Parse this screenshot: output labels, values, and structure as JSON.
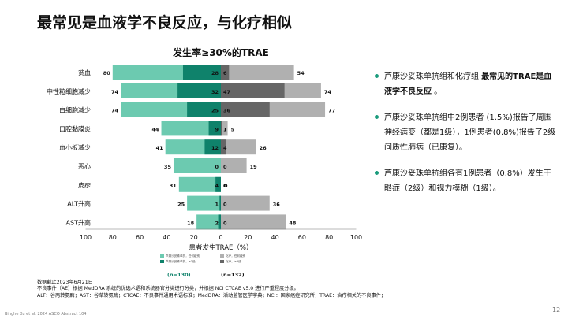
{
  "title": "最常见是血液学不良反应，与化疗相似",
  "chart_data": {
    "type": "bar",
    "layout": "butterfly-stacked",
    "title": "发生率≥30%的TRAE",
    "xlabel": "患者发生TRAE（%）",
    "xlim": [
      -100,
      100
    ],
    "xticks": [
      "100",
      "80",
      "60",
      "40",
      "20",
      "0",
      "20",
      "40",
      "60",
      "80",
      "100"
    ],
    "categories": [
      "贫血",
      "中性粒细胞减少",
      "白细胞减少",
      "口腔黏膜炎",
      "血小板减少",
      "恶心",
      "皮疹",
      "ALT升高",
      "AST升高"
    ],
    "left_series": [
      {
        "name": "芦康沙妥珠单抗，任何级别",
        "values": [
          80,
          74,
          74,
          44,
          41,
          35,
          31,
          25,
          18
        ],
        "color": "#6ccab0"
      },
      {
        "name": "芦康沙妥珠单抗，≥3级",
        "values": [
          28,
          32,
          25,
          9,
          12,
          0,
          4,
          1,
          2
        ],
        "color": "#0f826b"
      }
    ],
    "right_series": [
      {
        "name": "化疗，任何级别",
        "values": [
          54,
          74,
          77,
          5,
          26,
          19,
          0,
          36,
          48
        ],
        "color": "#b0b0b0"
      },
      {
        "name": "化疗，≥3级",
        "values": [
          6,
          47,
          36,
          1,
          4,
          0,
          0,
          0,
          0
        ],
        "color": "#666666"
      }
    ],
    "left_n": "(n=130)",
    "right_n": "(n=132)"
  },
  "bullets": [
    {
      "pre": "芦康沙妥珠单抗组和化疗组 ",
      "bold": "最常见的TRAE是血液学不良反应",
      "post": " 。"
    },
    {
      "pre": "芦康沙妥珠单抗组中2例患者 (1.5%)报告了周围神经病变（都是1级），1例患者(0.8%)报告了2级间质性肺病（已康复）",
      "bold": "",
      "post": "。"
    },
    {
      "pre": "芦康沙妥珠单抗组各有1例患者（0.8%）发生干眼症（2级）和视力模糊（1级）",
      "bold": "",
      "post": "。"
    }
  ],
  "footnotes": [
    "数据截止2023年6月21日",
    "不良事件（AE）根据 MedDRA 系统的优选术语和系统器官分类进行分类，并根据 NCI CTCAE v5.0 进行严重程度分级。",
    "ALT：谷丙转氨酶；AST：谷草转氨酶；CTCAE：不良事件通用术语标准；MedDRA：活动监管医学字典；NCI：国家癌症研究所；TRAE：治疗相关的不良事件；"
  ],
  "source": "Binghe Xu et al. 2024 ASCO Abstract 104",
  "page_number": "12"
}
